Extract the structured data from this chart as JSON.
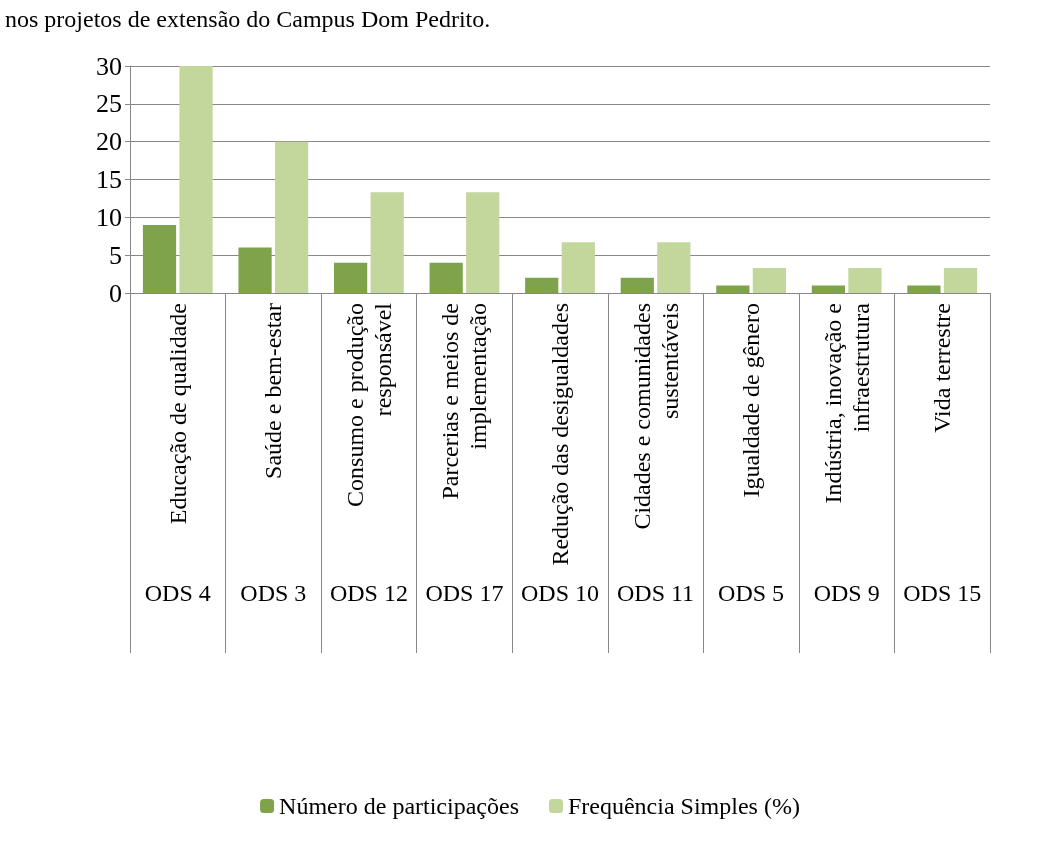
{
  "chart_data": {
    "type": "bar",
    "title": "nos projetos de extensão do Campus Dom Pedrito.",
    "categories": [
      "Educação de qualidade",
      "Saúde e bem-estar",
      "Consumo e produção\nresponsável",
      "Parcerias e meios de\nimplementação",
      "Redução das desigualdades",
      "Cidades e comunidades\nsustentáveis",
      "Igualdade de gênero",
      "Indústria, inovação e\ninfraestrutura",
      "Vida terrestre"
    ],
    "annotations": [
      "ODS 4",
      "ODS 3",
      "ODS 12",
      "ODS 17",
      "ODS 10",
      "ODS 11",
      "ODS 5",
      "ODS 9",
      "ODS 15"
    ],
    "series": [
      {
        "name": "Número de participações",
        "color": "#7fa34a",
        "values": [
          9,
          6,
          4,
          4,
          2,
          2,
          1,
          1,
          1
        ]
      },
      {
        "name": "Frequência Simples (%)",
        "color": "#c3d69b",
        "values": [
          30,
          20,
          13.3,
          13.3,
          6.7,
          6.7,
          3.3,
          3.3,
          3.3
        ]
      }
    ],
    "ylim": [
      0,
      30
    ],
    "yticks": [
      0,
      5,
      10,
      15,
      20,
      25,
      30
    ],
    "grid": "y",
    "legend": "bottom"
  }
}
